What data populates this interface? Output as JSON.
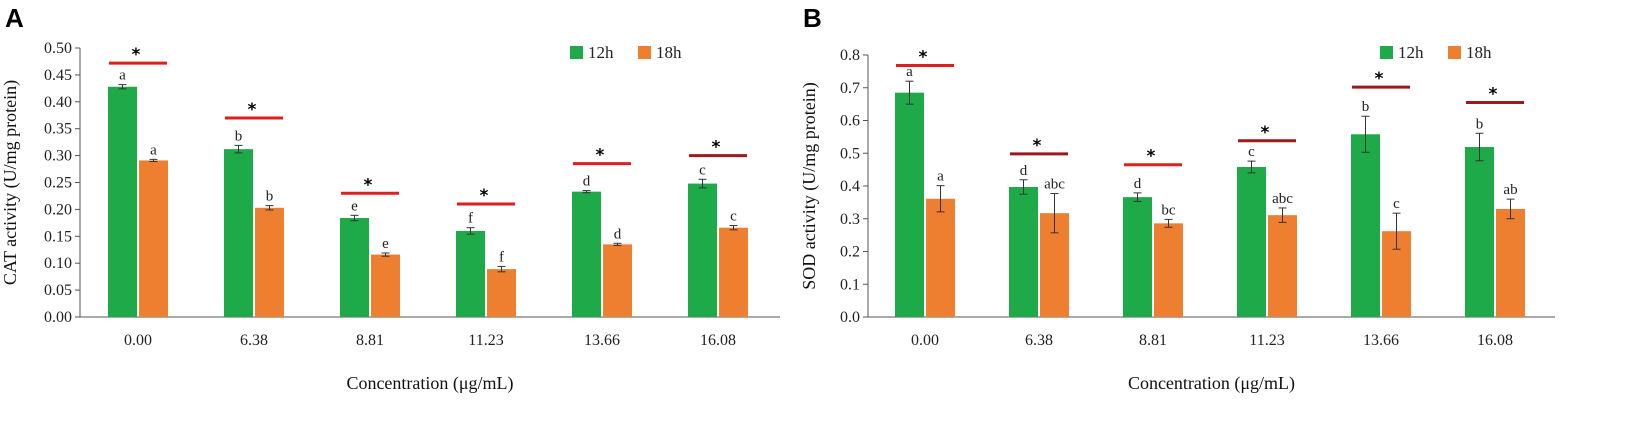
{
  "colors": {
    "series_12h": "#1faa4a",
    "series_18h": "#ee7f30",
    "sig_line_red": "#e01e1e",
    "sig_line_dark": "#9b1b1b",
    "axis": "#555555",
    "error_bar": "#333333"
  },
  "chart_data": [
    {
      "type": "bar",
      "panel": "A",
      "title": "",
      "xlabel": "Concentration (μg/mL)",
      "ylabel": "CAT activity (U/mg protein)",
      "ylim": [
        0,
        0.5
      ],
      "yticks": [
        "0.00",
        "0.05",
        "0.10",
        "0.15",
        "0.20",
        "0.25",
        "0.30",
        "0.35",
        "0.40",
        "0.45",
        "0.50"
      ],
      "legend_position": "top-right",
      "categories": [
        "0.00",
        "6.38",
        "8.81",
        "11.23",
        "13.66",
        "16.08"
      ],
      "series": [
        {
          "name": "12h",
          "values": [
            0.428,
            0.312,
            0.184,
            0.16,
            0.233,
            0.248
          ],
          "errors": [
            0.004,
            0.007,
            0.005,
            0.006,
            0.002,
            0.008
          ],
          "letters": [
            "a",
            "b",
            "e",
            "f",
            "d",
            "c"
          ]
        },
        {
          "name": "18h",
          "values": [
            0.291,
            0.203,
            0.116,
            0.089,
            0.135,
            0.166
          ],
          "errors": [
            0.002,
            0.004,
            0.003,
            0.005,
            0.002,
            0.004
          ],
          "letters": [
            "a",
            "b",
            "e",
            "f",
            "d",
            "c"
          ]
        }
      ],
      "significance": [
        {
          "y": 0.472,
          "label": "*",
          "tone": "red"
        },
        {
          "y": 0.37,
          "label": "*",
          "tone": "red"
        },
        {
          "y": 0.23,
          "label": "*",
          "tone": "red"
        },
        {
          "y": 0.21,
          "label": "*",
          "tone": "red"
        },
        {
          "y": 0.285,
          "label": "*",
          "tone": "red"
        },
        {
          "y": 0.3,
          "label": "*",
          "tone": "dark"
        }
      ]
    },
    {
      "type": "bar",
      "panel": "B",
      "title": "",
      "xlabel": "Concentration (μg/mL)",
      "ylabel": "SOD activity (U/mg protein)",
      "ylim": [
        0,
        0.8
      ],
      "yticks": [
        "0.0",
        "0.1",
        "0.2",
        "0.3",
        "0.4",
        "0.5",
        "0.6",
        "0.7",
        "0.8"
      ],
      "legend_position": "top-right",
      "categories": [
        "0.00",
        "6.38",
        "8.81",
        "11.23",
        "13.66",
        "16.08"
      ],
      "series": [
        {
          "name": "12h",
          "values": [
            0.685,
            0.397,
            0.366,
            0.458,
            0.558,
            0.519
          ],
          "errors": [
            0.035,
            0.022,
            0.013,
            0.018,
            0.055,
            0.042
          ],
          "letters": [
            "a",
            "d",
            "d",
            "c",
            "b",
            "b"
          ]
        },
        {
          "name": "18h",
          "values": [
            0.361,
            0.317,
            0.286,
            0.311,
            0.262,
            0.33
          ],
          "errors": [
            0.04,
            0.06,
            0.012,
            0.022,
            0.055,
            0.03
          ],
          "letters": [
            "a",
            "abc",
            "bc",
            "abc",
            "c",
            "ab"
          ]
        }
      ],
      "significance": [
        {
          "y": 0.768,
          "label": "*",
          "tone": "red"
        },
        {
          "y": 0.498,
          "label": "*",
          "tone": "dark"
        },
        {
          "y": 0.465,
          "label": "*",
          "tone": "red"
        },
        {
          "y": 0.538,
          "label": "*",
          "tone": "dark"
        },
        {
          "y": 0.702,
          "label": "*",
          "tone": "dark"
        },
        {
          "y": 0.655,
          "label": "*",
          "tone": "dark"
        }
      ]
    }
  ]
}
